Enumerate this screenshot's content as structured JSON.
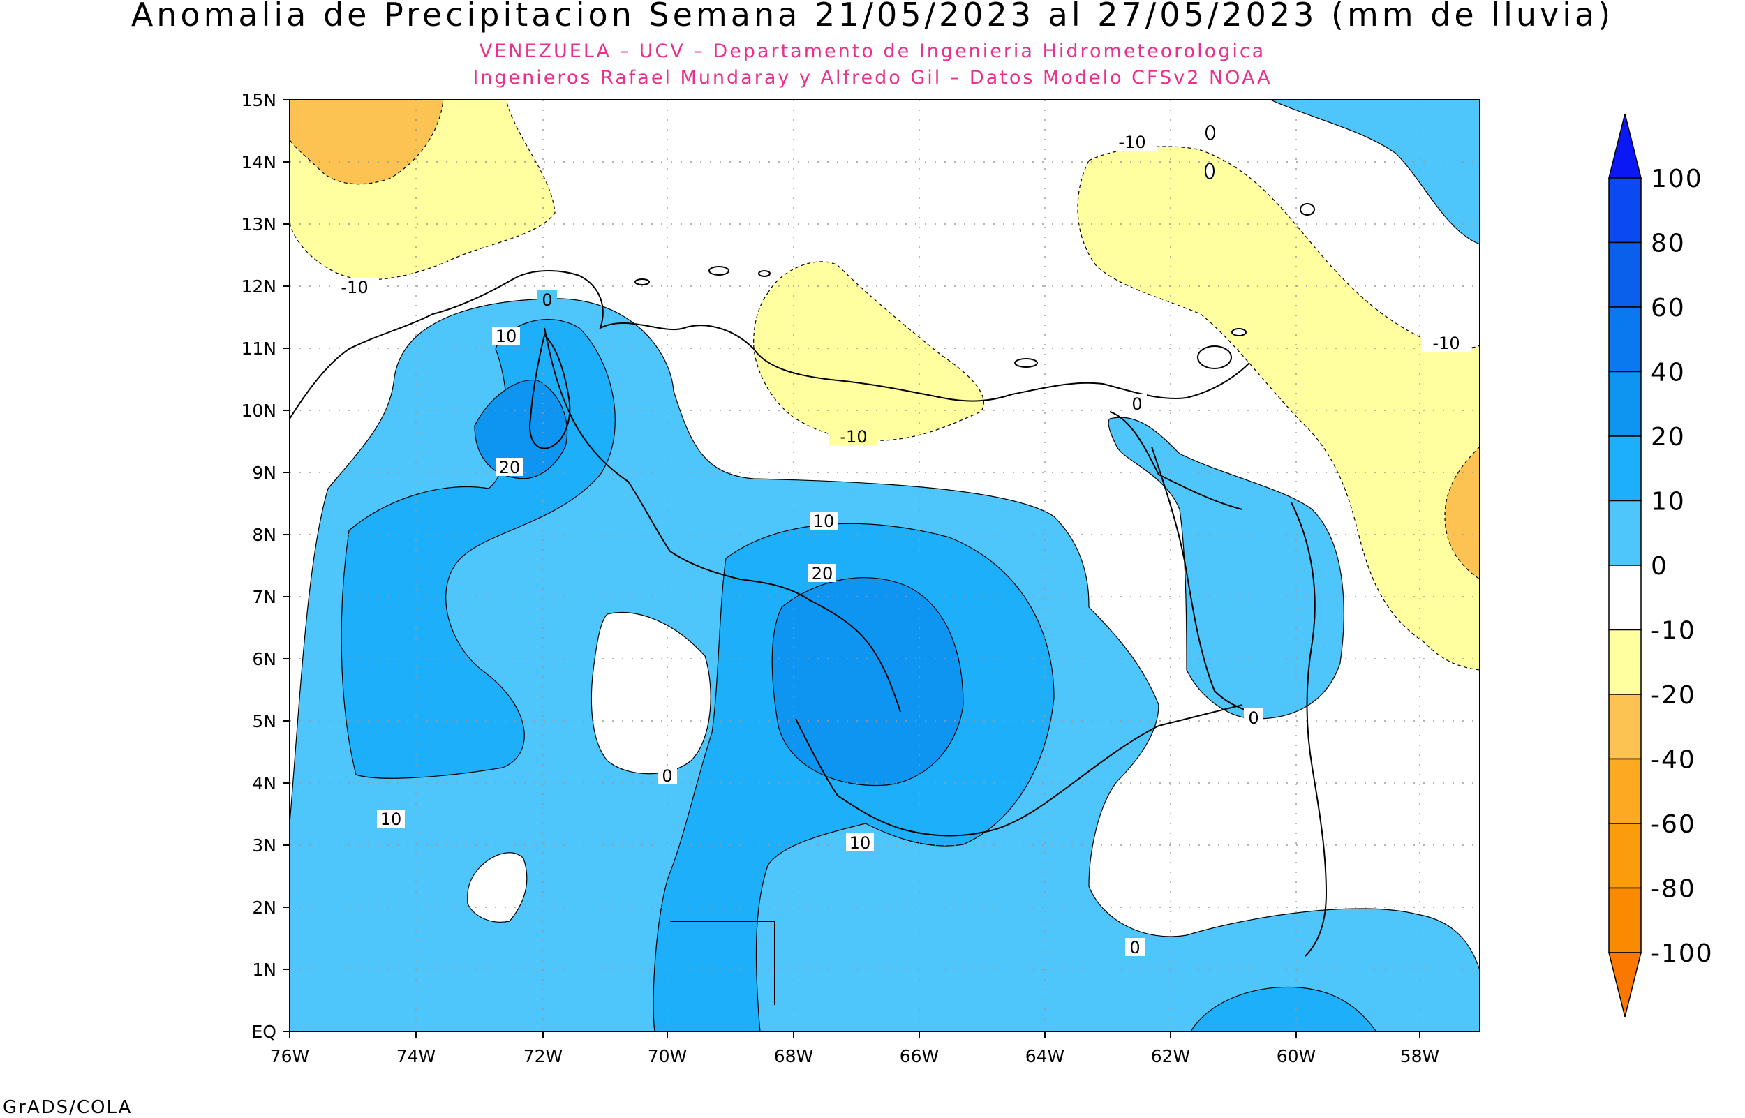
{
  "title": "Anomalia de Precipitacion Semana 21/05/2023 al 27/05/2023 (mm de lluvia)",
  "subtitle_1": "VENEZUELA – UCV – Departamento de Ingenieria Hidrometeorologica",
  "subtitle_2": "Ingenieros Rafael Mundaray y Alfredo Gil – Datos Modelo CFSv2 NOAA",
  "footer": "GrADS/COLA",
  "colors": {
    "subtitle": "#e8308c",
    "pos_0_10": "#4fc6fb",
    "pos_10_20": "#1eaffa",
    "pos_20_40": "#0e95f2",
    "neg_0_10": "#ffffa0",
    "neg_10_20": "#fcc352"
  },
  "lon_labels": [
    "76W",
    "74W",
    "72W",
    "70W",
    "68W",
    "66W",
    "64W",
    "62W",
    "60W",
    "58W"
  ],
  "lat_labels": [
    "EQ",
    "1N",
    "2N",
    "3N",
    "4N",
    "5N",
    "6N",
    "7N",
    "8N",
    "9N",
    "10N",
    "11N",
    "12N",
    "13N",
    "14N",
    "15N"
  ],
  "contour_labels": [
    "0",
    "10",
    "20",
    "10",
    "20",
    "10",
    "10",
    "0",
    "0",
    "0",
    "0",
    "-10",
    "-10",
    "-10",
    "-10"
  ],
  "colorbar": {
    "labels": [
      "100",
      "80",
      "60",
      "40",
      "20",
      "10",
      "0",
      "-10",
      "-20",
      "-40",
      "-60",
      "-80",
      "-100"
    ],
    "colors": [
      "#0a18f5",
      "#0a4af0",
      "#0a60ea",
      "#0a78ee",
      "#0e95f2",
      "#1eaffa",
      "#4fc6fb",
      "#ffffff",
      "#ffffa0",
      "#fcc352",
      "#fcaa22",
      "#fb9c0c",
      "#fa8a00",
      "#fa7800"
    ]
  }
}
